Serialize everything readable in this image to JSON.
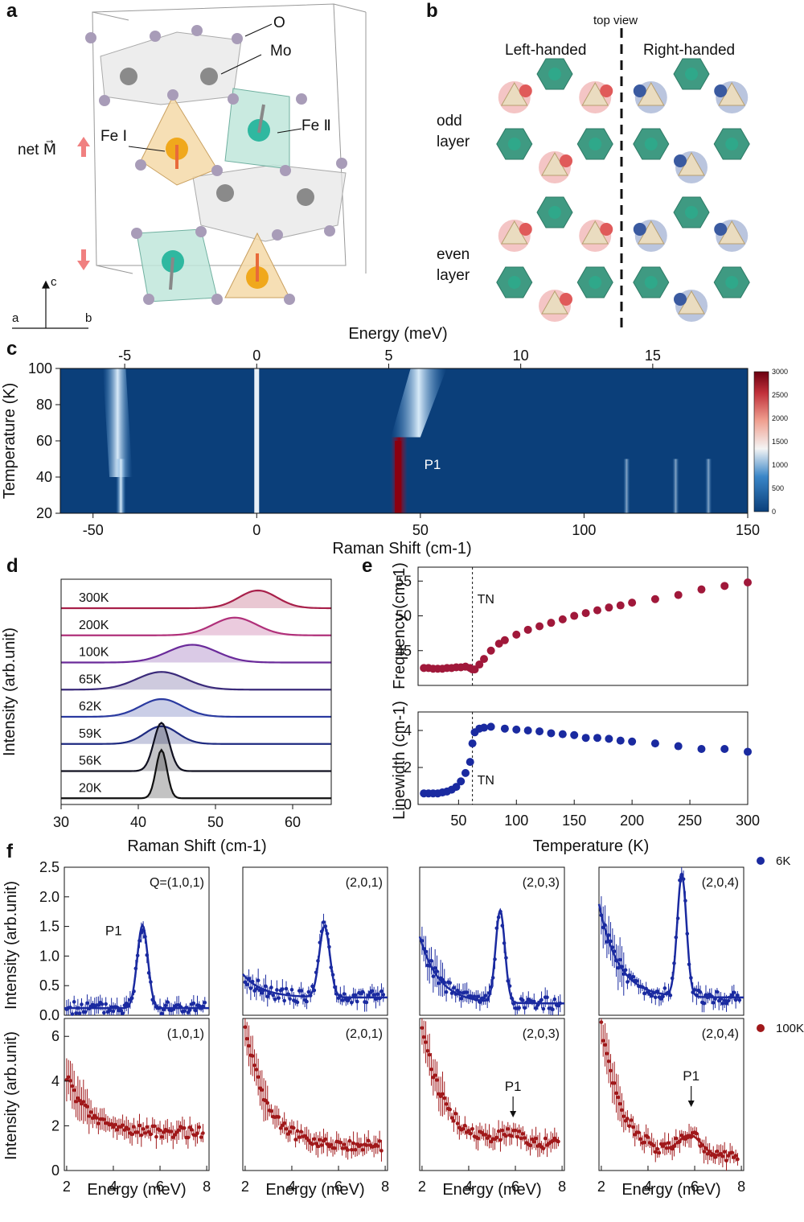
{
  "panel_letters": [
    "a",
    "b",
    "c",
    "d",
    "e",
    "f"
  ],
  "panel_a": {
    "labels": {
      "O": "O",
      "Mo": "Mo",
      "Fe1": "Fe Ⅰ",
      "Fe2": "Fe Ⅱ",
      "net_M": "net M⃗"
    },
    "axes": {
      "c": "c",
      "a": "a",
      "b": "b"
    },
    "colors": {
      "O": "#a89cb8",
      "Mo": "#8a8a8a",
      "Fe1": "#f0a81c",
      "Fe2": "#2fb8a0",
      "arrow": "#f08080"
    }
  },
  "panel_b": {
    "top_view": "top view",
    "left": "Left-handed",
    "right": "Right-handed",
    "odd": [
      "odd",
      "layer"
    ],
    "even": [
      "even",
      "layer"
    ],
    "colors": {
      "left": "#e05a5a",
      "right": "#3a5aa0",
      "octahedron": "#3f9a82"
    }
  },
  "chart_data": [
    {
      "id": "c",
      "type": "heatmap",
      "xlabel": "Raman Shift (cm-1)",
      "top_xlabel": "Energy (meV)",
      "ylabel": "Temperature (K)",
      "xlim": [
        -60,
        150
      ],
      "ylim": [
        20,
        100
      ],
      "xticks": [
        -50,
        0,
        50,
        100,
        150
      ],
      "top_ticks": [
        -5,
        0,
        5,
        10,
        15
      ],
      "yticks": [
        20,
        40,
        60,
        80,
        100
      ],
      "colorbar": {
        "range": [
          0,
          3000
        ],
        "ticks": [
          0,
          500,
          1000,
          1500,
          2000,
          2500,
          3000
        ]
      },
      "annotation": "P1",
      "features": [
        {
          "x": -42,
          "note": "peak"
        },
        {
          "x": 0,
          "note": "elastic"
        },
        {
          "x": 43,
          "note": "P1"
        },
        {
          "x": 113
        },
        {
          "x": 128
        },
        {
          "x": 138
        }
      ]
    },
    {
      "id": "d",
      "type": "line",
      "xlabel": "Raman Shift (cm-1)",
      "ylabel": "Intensity (arb.unit)",
      "xlim": [
        30,
        65
      ],
      "xticks": [
        30,
        40,
        50,
        60
      ],
      "series": [
        {
          "name": "300K",
          "center": 55.5,
          "width": 3.5,
          "color": "#a8204a"
        },
        {
          "name": "200K",
          "center": 52.5,
          "width": 4,
          "color": "#b0307a"
        },
        {
          "name": "100K",
          "center": 47,
          "width": 4.5,
          "color": "#6a2a9a"
        },
        {
          "name": "65K",
          "center": 43,
          "width": 4.5,
          "color": "#3a2a7a"
        },
        {
          "name": "62K",
          "center": 43,
          "width": 3.8,
          "color": "#2a3aa0"
        },
        {
          "name": "59K",
          "center": 43,
          "width": 3,
          "color": "#1e2a80"
        },
        {
          "name": "56K",
          "center": 43,
          "width": 1.4,
          "color": "#101020"
        },
        {
          "name": "20K",
          "center": 43,
          "width": 1.0,
          "color": "#101010"
        }
      ]
    },
    {
      "id": "e_top",
      "type": "scatter",
      "ylabel": "Frequency (cm-1)",
      "ylim": [
        40,
        57
      ],
      "yticks": [
        45,
        50,
        55
      ],
      "xlim": [
        15,
        300
      ],
      "annotation": "TN",
      "TN": 62,
      "color": "#a0183a",
      "x": [
        20,
        24,
        28,
        32,
        36,
        40,
        44,
        48,
        52,
        56,
        60,
        62,
        64,
        68,
        72,
        78,
        85,
        90,
        100,
        110,
        120,
        130,
        140,
        150,
        160,
        170,
        180,
        190,
        200,
        220,
        240,
        260,
        280,
        300
      ],
      "y": [
        42.5,
        42.5,
        42.4,
        42.4,
        42.4,
        42.5,
        42.5,
        42.6,
        42.6,
        42.7,
        42.5,
        42.3,
        42.3,
        43,
        43.8,
        45,
        46,
        46.5,
        47.3,
        48,
        48.5,
        49,
        49.5,
        50,
        50.4,
        50.8,
        51.2,
        51.5,
        51.9,
        52.4,
        53,
        53.8,
        54.3,
        54.8
      ]
    },
    {
      "id": "e_bottom",
      "type": "scatter",
      "ylabel": "Linewidth (cm-1)",
      "ylim": [
        0,
        5
      ],
      "yticks": [
        0,
        2,
        4
      ],
      "xlim": [
        15,
        300
      ],
      "xticks": [
        50,
        100,
        150,
        200,
        250,
        300
      ],
      "xlabel": "Temperature (K)",
      "annotation": "TN",
      "TN": 62,
      "color": "#1a2aa0",
      "x": [
        20,
        24,
        28,
        32,
        36,
        40,
        44,
        48,
        52,
        56,
        60,
        62,
        64,
        68,
        72,
        78,
        90,
        100,
        110,
        120,
        130,
        140,
        150,
        160,
        170,
        180,
        190,
        200,
        220,
        240,
        260,
        280,
        300
      ],
      "y": [
        0.6,
        0.6,
        0.6,
        0.6,
        0.65,
        0.7,
        0.8,
        0.95,
        1.25,
        1.7,
        2.3,
        3.3,
        3.9,
        4.1,
        4.15,
        4.2,
        4.1,
        4.05,
        4.0,
        3.95,
        3.85,
        3.8,
        3.75,
        3.6,
        3.6,
        3.55,
        3.45,
        3.4,
        3.3,
        3.15,
        3.0,
        3.0,
        2.85
      ]
    },
    {
      "id": "f",
      "type": "scatter",
      "xlabel": "Energy (meV)",
      "ylabel_top": "Intensity (arb.unit)",
      "ylabel_bottom": "Intensity (arb.unit)",
      "xlim": [
        1.9,
        8.1
      ],
      "xticks": [
        2,
        4,
        6,
        8
      ],
      "top_ylim": [
        0,
        2.5
      ],
      "top_yticks": [
        0,
        0.5,
        1.0,
        1.5,
        2.0,
        2.5
      ],
      "bottom_ylim": [
        0,
        6.8
      ],
      "bottom_yticks": [
        0,
        2,
        4,
        6
      ],
      "legend": [
        {
          "name": "6K",
          "color": "#1a2aa0"
        },
        {
          "name": "100K",
          "color": "#a0181a"
        }
      ],
      "panels": [
        {
          "q": "Q=(1,0,1)",
          "q2": "(1,0,1)",
          "peak": 5.25,
          "amp": 1.4,
          "base": 0.12,
          "wid": 0.32,
          "lowboost": 0.0,
          "bottom_start": 4.2,
          "bottom_end": 1.7,
          "p1_label": "P1",
          "p1_at": "top"
        },
        {
          "q": "(2,0,1)",
          "q2": "(2,0,1)",
          "peak": 5.4,
          "amp": 1.2,
          "base": 0.3,
          "wid": 0.32,
          "lowboost": 0.35,
          "bottom_start": 6.6,
          "bottom_end": 1.1
        },
        {
          "q": "(2,0,3)",
          "q2": "(2,0,3)",
          "peak": 5.35,
          "amp": 1.55,
          "base": 0.2,
          "wid": 0.28,
          "lowboost": 1.0,
          "bottom_start": 6.6,
          "bottom_end": 1.2,
          "p1_label": "P1",
          "p1_at": "bottom",
          "p1_x": 5.9
        },
        {
          "q": "(2,0,4)",
          "q2": "(2,0,4)",
          "peak": 5.45,
          "amp": 2.05,
          "base": 0.3,
          "wid": 0.28,
          "lowboost": 1.4,
          "bottom_start": 6.4,
          "bottom_end": 0.6,
          "p1_label": "P1",
          "p1_at": "bottom",
          "p1_x": 5.85
        }
      ]
    }
  ]
}
